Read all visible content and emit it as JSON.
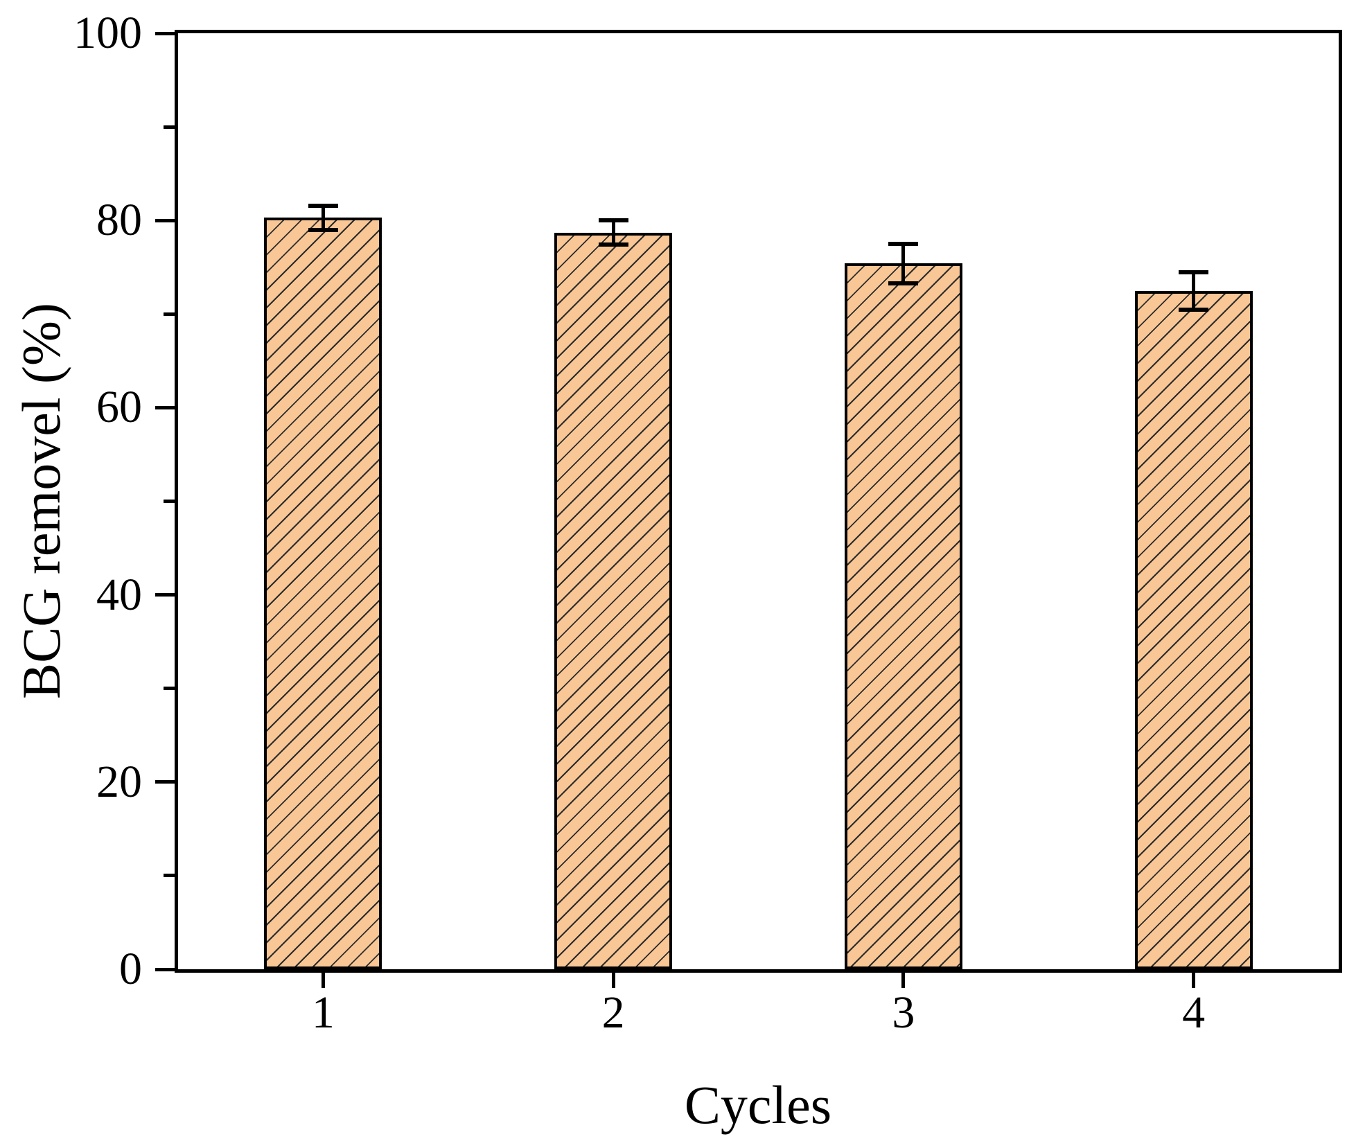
{
  "figure": {
    "background_color": "#ffffff",
    "text_color": "#000000"
  },
  "chart_data": {
    "type": "bar",
    "title": "",
    "categories": [
      "1",
      "2",
      "3",
      "4"
    ],
    "values": [
      80.3,
      78.7,
      75.4,
      72.5
    ],
    "errors": [
      1.3,
      1.3,
      2.1,
      2.0
    ],
    "xlabel": "Cycles",
    "ylabel": "BCG removel (%)",
    "ylim": [
      0,
      100
    ],
    "yticks_major": [
      0,
      20,
      40,
      60,
      80,
      100
    ],
    "yticks_minor": [
      10,
      30,
      50,
      70,
      90
    ],
    "grid": false,
    "legend": false,
    "frame": "full-box",
    "bar_fill_color": "#f9c695",
    "bar_edge_color": "#000000",
    "bar_hatch_style": "forward-slash-45deg",
    "hatch_line_color": "#2b2b2b",
    "error_bar_color": "#000000",
    "axis_color": "#000000"
  }
}
